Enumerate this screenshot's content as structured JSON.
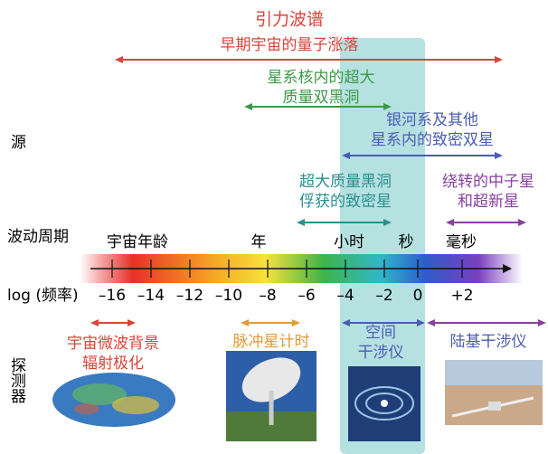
{
  "title": "引力波谱",
  "side_labels": {
    "sources": "源",
    "period": "波动周期",
    "frequency": "log (频率)",
    "detectors": "探测器"
  },
  "sources": [
    {
      "lines": [
        "早期宇宙的量子涨落"
      ]
    },
    {
      "lines": [
        "星系核内的超大",
        "质量双黑洞"
      ]
    },
    {
      "lines": [
        "银河系及其他",
        "星系内的致密双星"
      ]
    },
    {
      "lines": [
        "超大质量黑洞",
        "俘获的致密星"
      ]
    },
    {
      "lines": [
        "绕转的中子星",
        "和超新星"
      ]
    }
  ],
  "periods": [
    "宇宙年龄",
    "年",
    "小时",
    "秒",
    "毫秒"
  ],
  "frequency_ticks": [
    "–16",
    "–14",
    "–12",
    "–10",
    "–8",
    "–6",
    "–4",
    "–2",
    "0",
    "+2"
  ],
  "detectors": [
    {
      "lines": [
        "宇宙微波背景",
        "辐射极化"
      ]
    },
    {
      "lines": [
        "脉冲星计时"
      ]
    },
    {
      "lines": [
        "空间",
        "干涉仪"
      ]
    },
    {
      "lines": [
        "陆基干涉仪"
      ]
    }
  ]
}
